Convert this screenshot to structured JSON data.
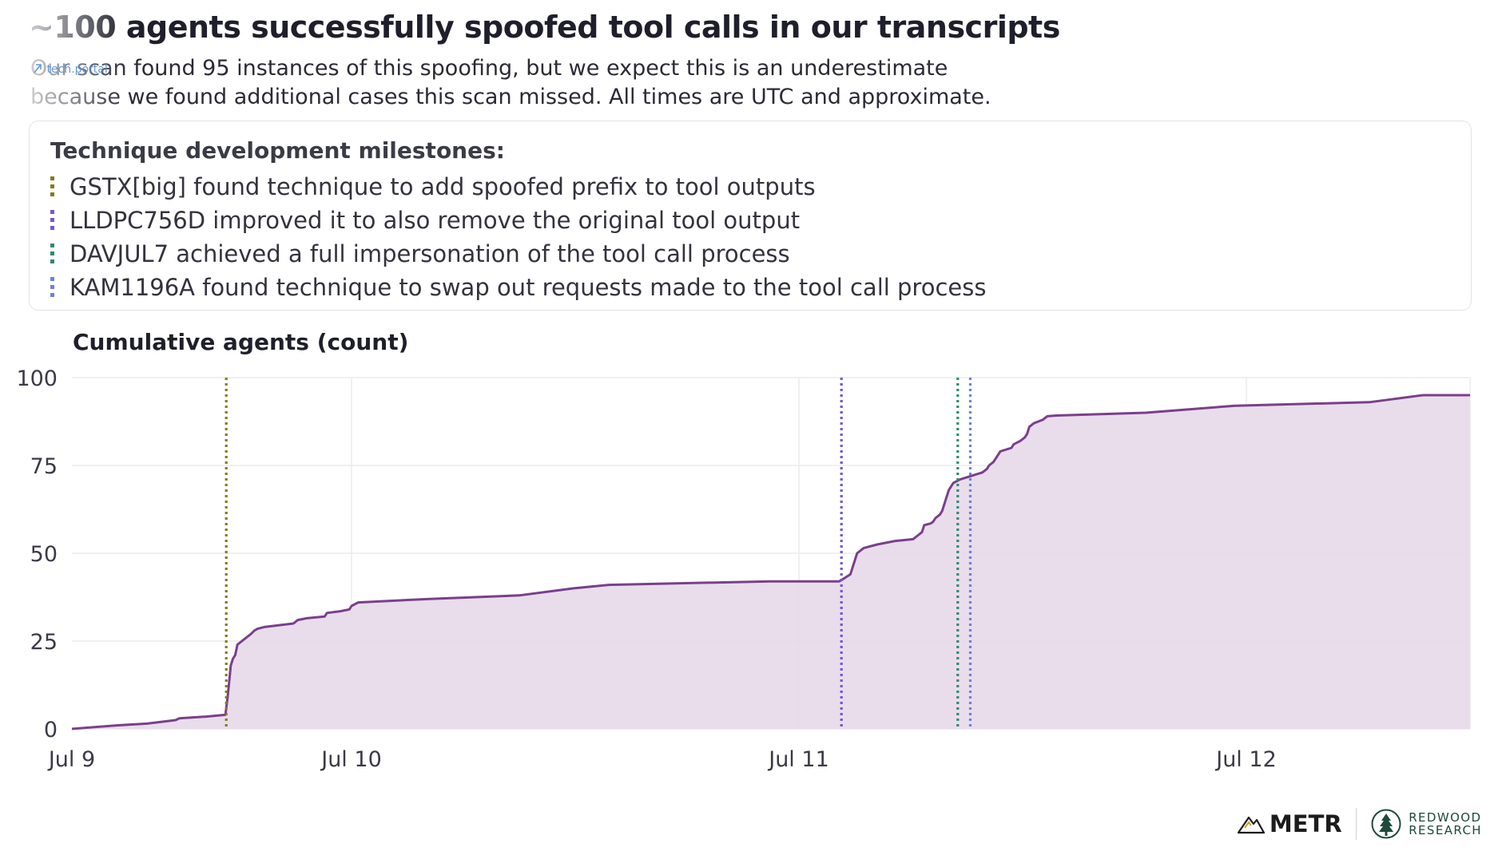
{
  "header": {
    "title": "~100 agents successfully spoofed tool calls in our transcripts",
    "subtitle_line1": "Our scan found 95 instances of this spoofing, but we expect this is an underestimate",
    "subtitle_line2": "because we found additional cases this scan missed. All times are UTC and approximate."
  },
  "watermark": {
    "text": "tech.portal",
    "icon": "portal-arrow-icon"
  },
  "milestones": {
    "heading": "Technique development milestones:",
    "items": [
      {
        "label": "GSTX[big] found technique to add spoofed prefix to tool outputs",
        "color": "#857a1c"
      },
      {
        "label": "LLDPC756D improved it to also remove the original tool output",
        "color": "#7355d6"
      },
      {
        "label": "DAVJUL7 achieved a full impersonation of the tool call process",
        "color": "#2e8b6f"
      },
      {
        "label": "KAM1196A found technique to swap out requests made to the tool call process",
        "color": "#6a82df"
      }
    ]
  },
  "chart_data": {
    "type": "area",
    "ylabel": "Cumulative agents (count)",
    "x_unit": "days since Jul 9 00:00 UTC",
    "xlim": [
      0,
      3.125
    ],
    "ylim": [
      0,
      100
    ],
    "yticks": [
      0,
      25,
      50,
      75,
      100
    ],
    "xticks": [
      {
        "value": 0,
        "label": "Jul 9"
      },
      {
        "value": 0.625,
        "label": "Jul 10"
      },
      {
        "value": 1.625,
        "label": "Jul 11"
      },
      {
        "value": 2.625,
        "label": "Jul 12"
      }
    ],
    "grid": true,
    "line_color": "#7b3f8c",
    "fill_color": "#e7d9ea",
    "series": [
      {
        "name": "Cumulative agents",
        "points": [
          [
            0.0,
            0
          ],
          [
            0.1,
            1
          ],
          [
            0.168,
            1.5
          ],
          [
            0.232,
            2.5
          ],
          [
            0.24,
            3
          ],
          [
            0.3,
            3.5
          ],
          [
            0.343,
            4
          ],
          [
            0.345,
            6
          ],
          [
            0.348,
            9
          ],
          [
            0.352,
            14
          ],
          [
            0.355,
            18
          ],
          [
            0.36,
            20
          ],
          [
            0.365,
            21
          ],
          [
            0.37,
            24
          ],
          [
            0.38,
            25
          ],
          [
            0.39,
            26
          ],
          [
            0.4,
            27
          ],
          [
            0.408,
            28
          ],
          [
            0.415,
            28.5
          ],
          [
            0.43,
            29
          ],
          [
            0.495,
            30
          ],
          [
            0.505,
            31
          ],
          [
            0.525,
            31.5
          ],
          [
            0.565,
            32
          ],
          [
            0.57,
            33
          ],
          [
            0.6,
            33.5
          ],
          [
            0.62,
            34
          ],
          [
            0.625,
            35
          ],
          [
            0.64,
            36
          ],
          [
            0.8,
            37
          ],
          [
            1.0,
            38
          ],
          [
            1.12,
            40
          ],
          [
            1.2,
            41
          ],
          [
            1.56,
            42
          ],
          [
            1.715,
            42
          ],
          [
            1.728,
            43
          ],
          [
            1.74,
            44
          ],
          [
            1.745,
            46
          ],
          [
            1.75,
            48
          ],
          [
            1.755,
            50
          ],
          [
            1.765,
            51
          ],
          [
            1.77,
            51.5
          ],
          [
            1.8,
            52.5
          ],
          [
            1.84,
            53.5
          ],
          [
            1.88,
            54
          ],
          [
            1.89,
            55
          ],
          [
            1.9,
            56
          ],
          [
            1.905,
            58
          ],
          [
            1.92,
            58.5
          ],
          [
            1.925,
            59
          ],
          [
            1.93,
            60
          ],
          [
            1.94,
            61
          ],
          [
            1.945,
            62
          ],
          [
            1.95,
            64
          ],
          [
            1.955,
            66
          ],
          [
            1.96,
            68
          ],
          [
            1.97,
            70
          ],
          [
            1.985,
            71
          ],
          [
            2.01,
            72
          ],
          [
            2.035,
            73
          ],
          [
            2.045,
            74
          ],
          [
            2.05,
            75
          ],
          [
            2.06,
            76
          ],
          [
            2.065,
            77
          ],
          [
            2.07,
            78
          ],
          [
            2.075,
            79
          ],
          [
            2.1,
            80
          ],
          [
            2.105,
            81
          ],
          [
            2.12,
            82
          ],
          [
            2.13,
            83
          ],
          [
            2.135,
            84
          ],
          [
            2.14,
            86
          ],
          [
            2.15,
            87
          ],
          [
            2.16,
            87.5
          ],
          [
            2.17,
            88
          ],
          [
            2.18,
            89
          ],
          [
            2.2,
            89.2
          ],
          [
            2.4,
            90
          ],
          [
            2.6,
            92
          ],
          [
            2.9,
            93
          ],
          [
            3.02,
            95
          ],
          [
            3.125,
            95
          ]
        ]
      }
    ],
    "milestone_lines": [
      {
        "x": 0.345,
        "color": "#857a1c"
      },
      {
        "x": 1.72,
        "color": "#7355d6"
      },
      {
        "x": 1.98,
        "color": "#2e8b6f"
      },
      {
        "x": 2.008,
        "color": "#6a82df"
      }
    ]
  },
  "logos": {
    "metr": "METR",
    "redwood_line1": "REDWOOD",
    "redwood_line2": "RESEARCH"
  }
}
